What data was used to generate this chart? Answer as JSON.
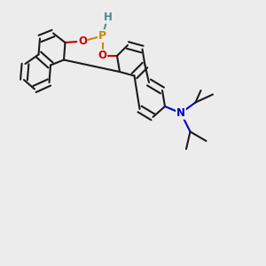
{
  "background_color": "#ececec",
  "atom_colors": {
    "C": "#1a1a1a",
    "O": "#cc0000",
    "P": "#cc8800",
    "N": "#0000cc",
    "H": "#4a8888"
  },
  "bond_lw": 1.5,
  "dbl_off": 0.013,
  "figsize": [
    3.0,
    3.0
  ],
  "dpi": 100,
  "xlim": [
    0.0,
    1.0
  ],
  "ylim": [
    0.0,
    1.0
  ]
}
